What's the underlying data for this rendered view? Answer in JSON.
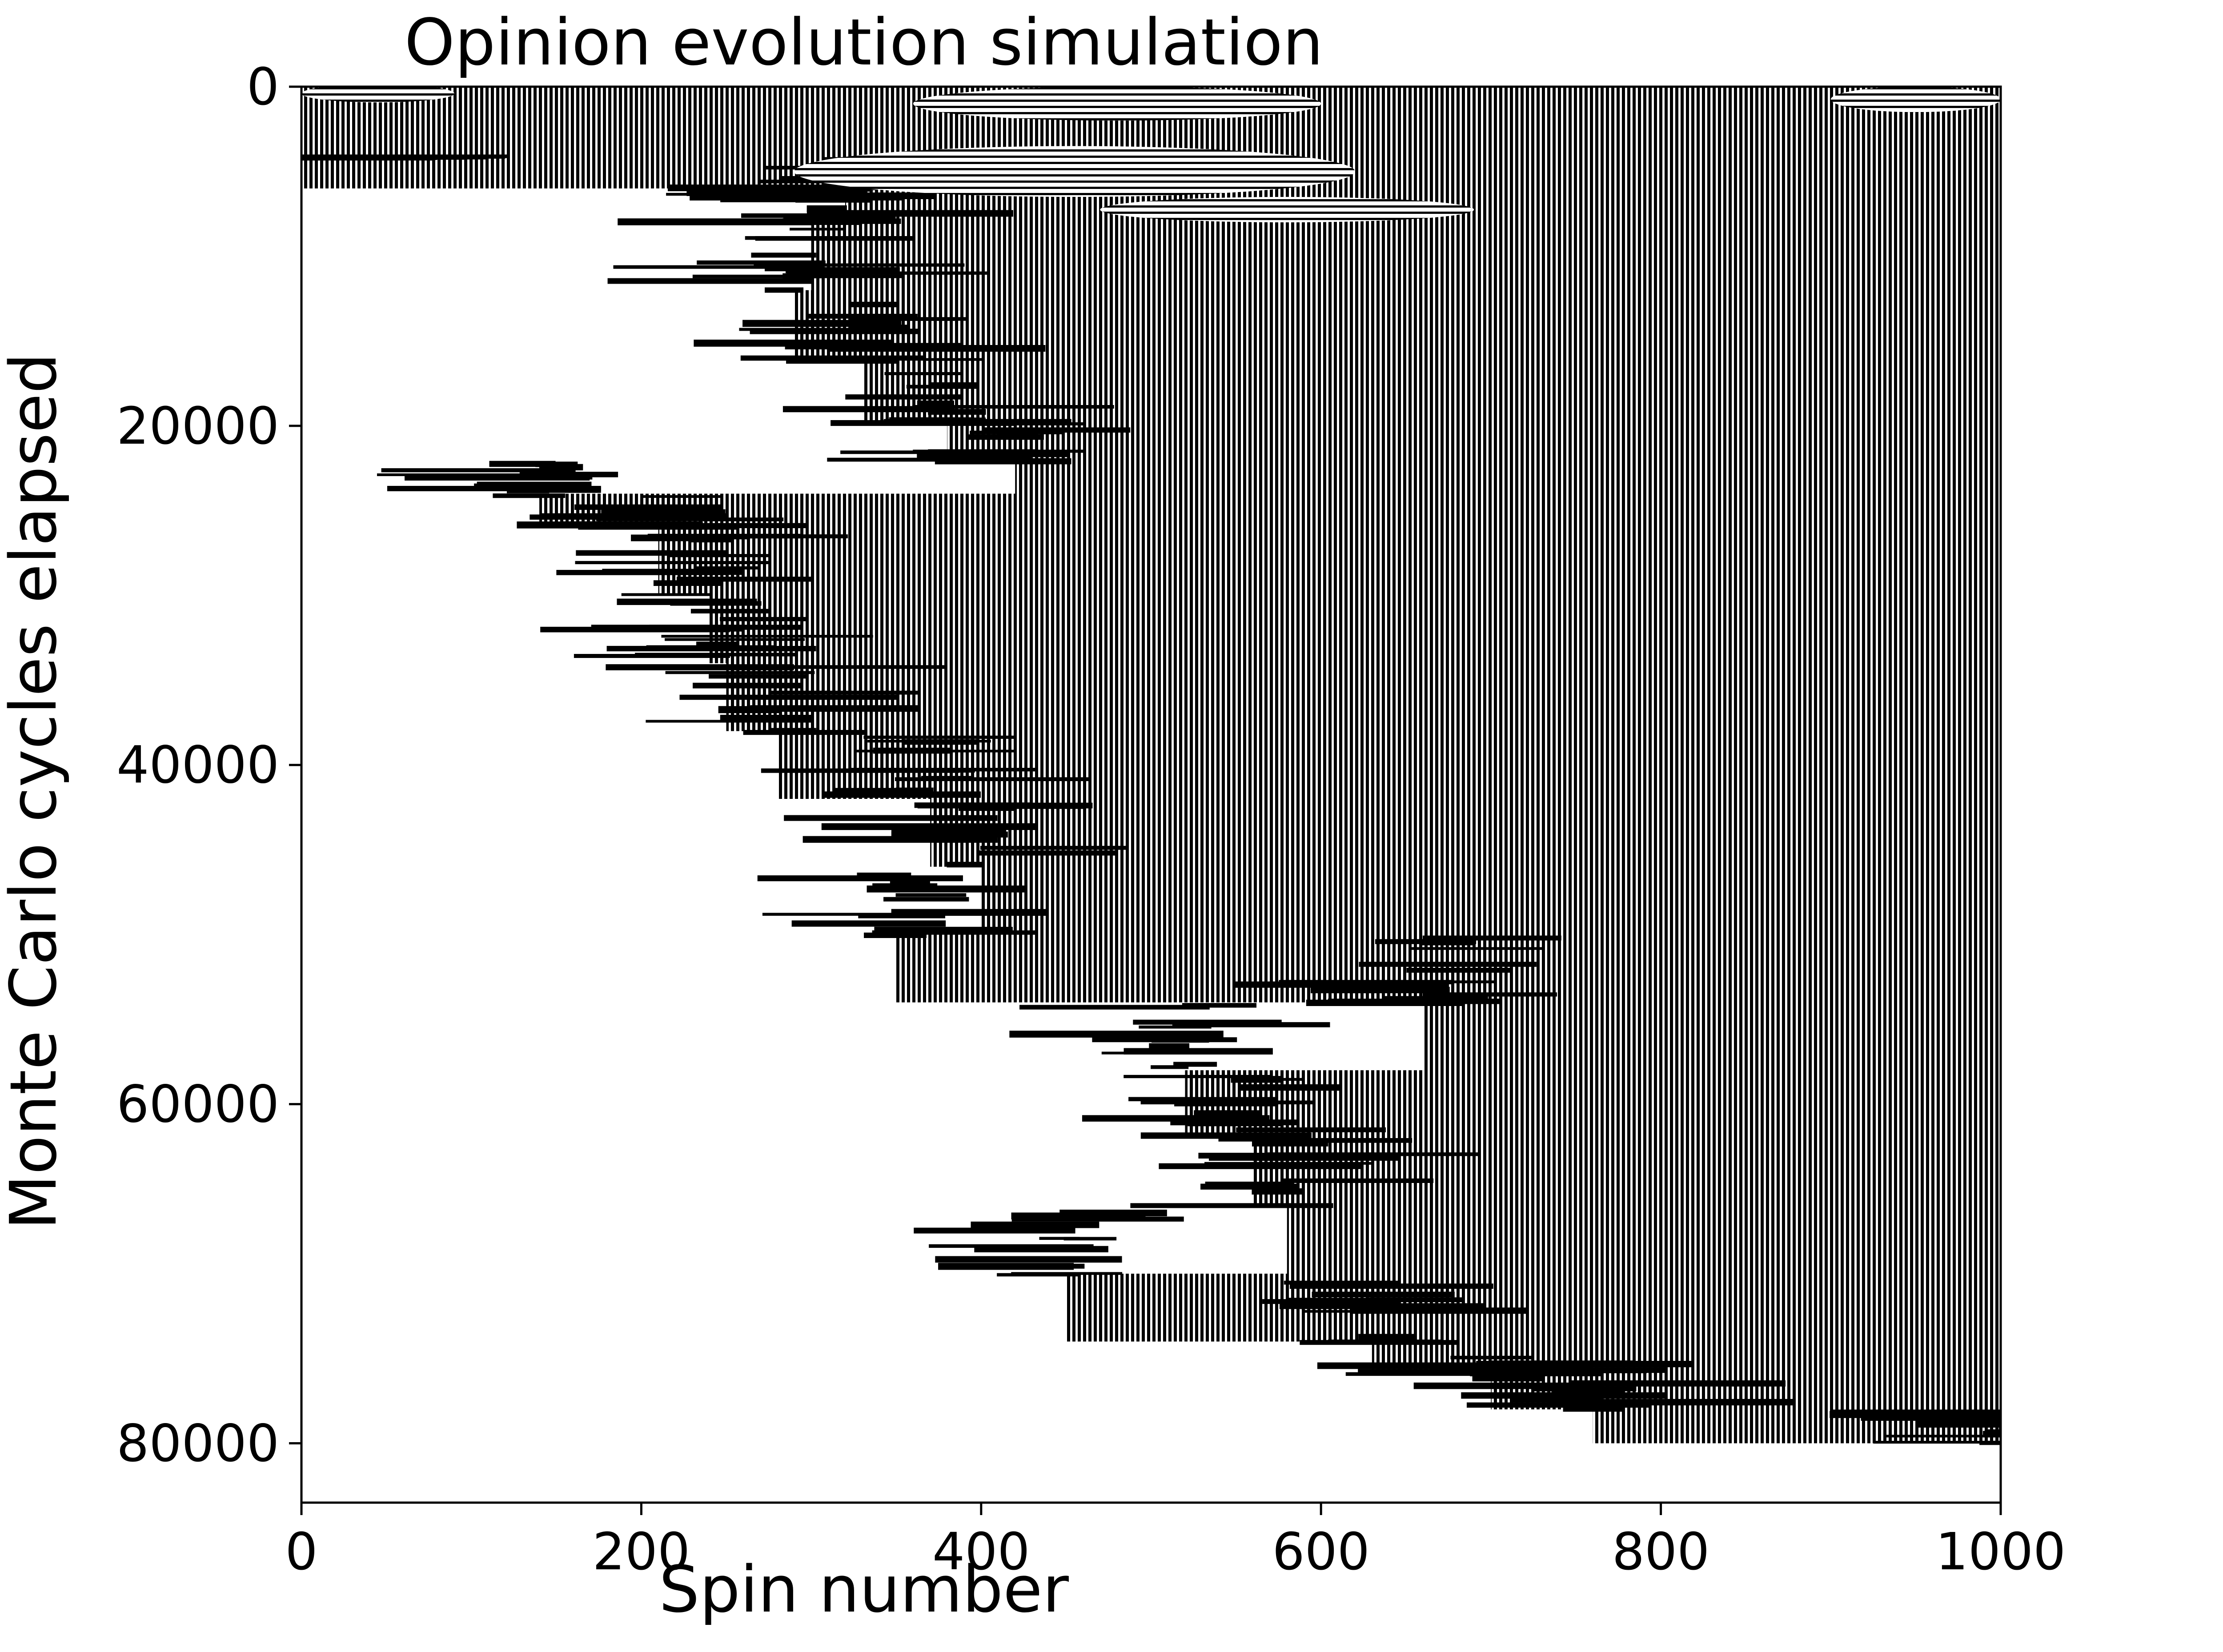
{
  "chart_data": {
    "type": "heatmap",
    "title": "Opinion evolution simulation",
    "xlabel": "Spin number",
    "ylabel": "Monte Carlo cycles elapsed",
    "xlim": [
      0,
      1000
    ],
    "ylim": [
      83500,
      0
    ],
    "x_ticks": [
      "0",
      "200",
      "400",
      "600",
      "800",
      "1000"
    ],
    "y_ticks": [
      "0",
      "20000",
      "40000",
      "60000",
      "80000"
    ],
    "x_tick_values": [
      0,
      200,
      400,
      600,
      800,
      1000
    ],
    "y_tick_values": [
      0,
      20000,
      40000,
      60000,
      80000
    ],
    "grid": false,
    "legend": "none",
    "colors": {
      "up": "#000000",
      "down": "#ffffff"
    },
    "boundary": {
      "description_values": "leftmost spin index of the dense black (spin-up) domain at each cycle count",
      "cycles": [
        4000,
        6000,
        8000,
        12000,
        16000,
        20000,
        22000,
        24000,
        26000,
        30000,
        34000,
        38000,
        42000,
        46000,
        50000,
        54000,
        58000,
        62000,
        66000,
        70000,
        74000,
        76000,
        78000,
        80000
      ],
      "left_spin": [
        0,
        320,
        300,
        290,
        330,
        380,
        420,
        140,
        210,
        240,
        250,
        280,
        370,
        400,
        350,
        660,
        520,
        560,
        580,
        450,
        630,
        700,
        760,
        1000
      ]
    },
    "top_region": {
      "cycles_end": 4000,
      "left_spin": 0
    },
    "end_cycles": 80000,
    "dense_clusters": [
      {
        "x0": 360,
        "x1": 600,
        "y0": 0,
        "y1": 2000
      },
      {
        "x0": 290,
        "x1": 620,
        "y0": 3500,
        "y1": 6500
      },
      {
        "x0": 470,
        "x1": 690,
        "y0": 6500,
        "y1": 8000
      },
      {
        "x0": 900,
        "x1": 1000,
        "y0": 0,
        "y1": 1500
      },
      {
        "x0": 0,
        "x1": 90,
        "y0": 0,
        "y1": 800
      }
    ]
  }
}
